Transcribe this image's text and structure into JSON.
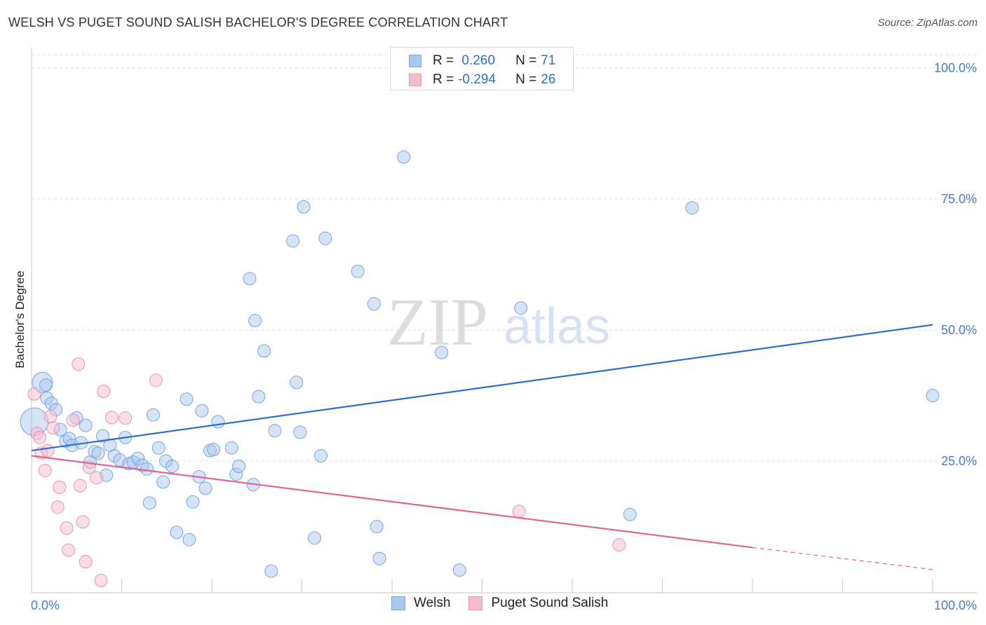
{
  "title": "WELSH VS PUGET SOUND SALISH BACHELOR'S DEGREE CORRELATION CHART",
  "source": "Source: ZipAtlas.com",
  "watermark": {
    "zip": "ZIP",
    "atlas": "atlas"
  },
  "colors": {
    "welsh_fill": "#a9c8ee",
    "welsh_stroke": "#7aa6dd",
    "welsh_line": "#2d6fce",
    "salish_fill": "#f6bccd",
    "salish_stroke": "#e995b0",
    "salish_line": "#e0648e",
    "tick_label": "#4a7cc9",
    "grid": "#dddddd"
  },
  "legend": {
    "rows": [
      {
        "r_label": "R =",
        "r_value": " 0.260",
        "n_label": "N =",
        "n_value": "71"
      },
      {
        "r_label": "R =",
        "r_value": "-0.294",
        "n_label": "N =",
        "n_value": "26"
      }
    ],
    "series": [
      "Welsh",
      "Puget Sound Salish"
    ]
  },
  "chart_data": {
    "type": "scatter",
    "title": "WELSH VS PUGET SOUND SALISH BACHELOR'S DEGREE CORRELATION CHART",
    "xlabel": "",
    "ylabel": "Bachelor's Degree",
    "xlim": [
      0,
      100
    ],
    "ylim": [
      0,
      100
    ],
    "x_tick_labels": [
      "0.0%",
      "100.0%"
    ],
    "y_ticks": [
      25,
      50,
      75,
      100
    ],
    "y_tick_labels": [
      "25.0%",
      "50.0%",
      "75.0%",
      "100.0%"
    ],
    "grid": "horizontal dashed",
    "legend_position": "top-center and bottom-center",
    "series": [
      {
        "name": "Welsh",
        "r": 0.26,
        "n": 71,
        "trend": {
          "x": [
            0,
            100
          ],
          "y": [
            27.0,
            51.0
          ]
        },
        "points": [
          [
            0.3,
            32.5,
            2.2
          ],
          [
            1.2,
            40.0,
            1.6
          ],
          [
            1.6,
            39.5,
            1.0
          ],
          [
            1.7,
            37.0,
            1.0
          ],
          [
            2.2,
            36.0,
            1.0
          ],
          [
            2.7,
            34.8,
            1.0
          ],
          [
            3.2,
            31.0,
            1.0
          ],
          [
            3.8,
            28.8,
            1.0
          ],
          [
            4.2,
            29.3,
            1.0
          ],
          [
            4.5,
            28.0,
            1.0
          ],
          [
            5.0,
            33.2,
            1.0
          ],
          [
            5.5,
            28.5,
            1.0
          ],
          [
            6.0,
            31.8,
            1.0
          ],
          [
            6.5,
            24.8,
            1.0
          ],
          [
            7.0,
            26.8,
            1.0
          ],
          [
            7.4,
            26.5,
            1.0
          ],
          [
            7.9,
            29.8,
            1.0
          ],
          [
            8.3,
            22.3,
            1.0
          ],
          [
            8.7,
            28.0,
            1.0
          ],
          [
            9.2,
            26.0,
            1.0
          ],
          [
            9.8,
            25.2,
            1.0
          ],
          [
            10.4,
            29.5,
            1.0
          ],
          [
            10.8,
            24.5,
            1.0
          ],
          [
            11.3,
            24.8,
            1.0
          ],
          [
            11.8,
            25.5,
            1.0
          ],
          [
            12.3,
            24.2,
            1.0
          ],
          [
            12.8,
            23.5,
            1.0
          ],
          [
            13.1,
            17.0,
            1.0
          ],
          [
            13.5,
            33.8,
            1.0
          ],
          [
            14.1,
            27.5,
            1.0
          ],
          [
            14.6,
            21.0,
            1.0
          ],
          [
            14.9,
            25.0,
            1.0
          ],
          [
            15.6,
            24.0,
            1.0
          ],
          [
            16.1,
            11.4,
            1.0
          ],
          [
            17.2,
            36.8,
            1.0
          ],
          [
            17.5,
            10.0,
            1.0
          ],
          [
            17.9,
            17.2,
            1.0
          ],
          [
            18.6,
            22.0,
            1.0
          ],
          [
            18.9,
            34.6,
            1.0
          ],
          [
            19.3,
            19.8,
            1.0
          ],
          [
            19.8,
            27.0,
            1.0
          ],
          [
            20.2,
            27.2,
            1.0
          ],
          [
            20.7,
            32.5,
            1.0
          ],
          [
            22.2,
            27.5,
            1.0
          ],
          [
            22.7,
            22.5,
            1.0
          ],
          [
            23.0,
            24.0,
            1.0
          ],
          [
            24.2,
            59.8,
            1.0
          ],
          [
            24.6,
            20.5,
            1.0
          ],
          [
            24.8,
            51.8,
            1.0
          ],
          [
            25.2,
            37.3,
            1.0
          ],
          [
            25.8,
            46.0,
            1.0
          ],
          [
            26.6,
            4.0,
            1.0
          ],
          [
            27.0,
            30.8,
            1.0
          ],
          [
            29.0,
            67.0,
            1.0
          ],
          [
            29.4,
            40.0,
            1.0
          ],
          [
            29.8,
            30.5,
            1.0
          ],
          [
            30.2,
            73.5,
            1.0
          ],
          [
            31.4,
            10.3,
            1.0
          ],
          [
            32.1,
            26.0,
            1.0
          ],
          [
            32.6,
            67.5,
            1.0
          ],
          [
            36.2,
            61.2,
            1.0
          ],
          [
            38.0,
            55.0,
            1.0
          ],
          [
            38.3,
            12.5,
            1.0
          ],
          [
            38.6,
            6.4,
            1.0
          ],
          [
            41.3,
            83.0,
            1.0
          ],
          [
            45.5,
            45.7,
            1.0
          ],
          [
            47.5,
            4.2,
            1.0
          ],
          [
            54.3,
            54.2,
            1.0
          ],
          [
            66.4,
            14.8,
            1.0
          ],
          [
            73.3,
            73.3,
            1.0
          ],
          [
            100.0,
            37.5,
            1.0
          ]
        ]
      },
      {
        "name": "Puget Sound Salish",
        "r": -0.294,
        "n": 26,
        "trend": {
          "x": [
            0,
            80
          ],
          "y": [
            26.0,
            8.5
          ]
        },
        "trend_extension": {
          "x": [
            80,
            100
          ],
          "y": [
            8.5,
            4.3
          ]
        },
        "points": [
          [
            0.3,
            37.8,
            1.0
          ],
          [
            0.6,
            30.3,
            1.0
          ],
          [
            0.9,
            29.5,
            1.0
          ],
          [
            1.1,
            26.5,
            1.0
          ],
          [
            1.5,
            23.2,
            1.0
          ],
          [
            1.8,
            27.0,
            1.0
          ],
          [
            2.1,
            33.5,
            1.0
          ],
          [
            2.4,
            31.3,
            1.0
          ],
          [
            2.9,
            16.2,
            1.0
          ],
          [
            3.1,
            20.0,
            1.0
          ],
          [
            3.9,
            12.2,
            1.0
          ],
          [
            4.1,
            8.0,
            1.0
          ],
          [
            4.6,
            32.8,
            1.0
          ],
          [
            5.2,
            43.5,
            1.0
          ],
          [
            5.4,
            20.3,
            1.0
          ],
          [
            5.7,
            13.4,
            1.0
          ],
          [
            6.0,
            5.8,
            1.0
          ],
          [
            6.4,
            23.8,
            1.0
          ],
          [
            7.2,
            21.8,
            1.0
          ],
          [
            7.7,
            2.2,
            1.0
          ],
          [
            8.0,
            38.3,
            1.0
          ],
          [
            8.9,
            33.3,
            1.0
          ],
          [
            10.4,
            33.2,
            1.0
          ],
          [
            13.8,
            40.4,
            1.0
          ],
          [
            54.1,
            15.4,
            1.0
          ],
          [
            65.2,
            9.0,
            1.0
          ]
        ]
      }
    ]
  }
}
